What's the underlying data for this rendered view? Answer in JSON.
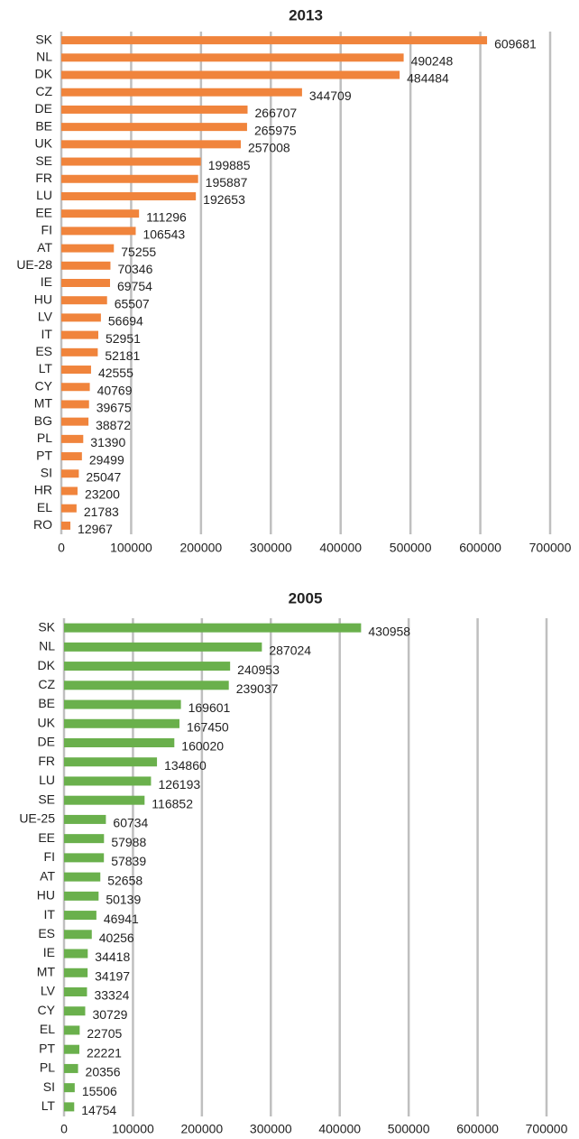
{
  "chart_data": [
    {
      "type": "bar",
      "orientation": "horizontal",
      "title": "2013",
      "color": "#f0843c",
      "grid": true,
      "categories": [
        "SK",
        "NL",
        "DK",
        "CZ",
        "DE",
        "BE",
        "UK",
        "SE",
        "FR",
        "LU",
        "EE",
        "FI",
        "AT",
        "UE-28",
        "IE",
        "HU",
        "LV",
        "IT",
        "ES",
        "LT",
        "CY",
        "MT",
        "BG",
        "PL",
        "PT",
        "SI",
        "HR",
        "EL",
        "RO"
      ],
      "values": [
        609681,
        490248,
        484484,
        344709,
        266707,
        265975,
        257008,
        199885,
        195887,
        192653,
        111296,
        106543,
        75255,
        70346,
        69754,
        65507,
        56694,
        52951,
        52181,
        42555,
        40769,
        39675,
        38872,
        31390,
        29499,
        25047,
        23200,
        21783,
        12967
      ],
      "ylim": [
        0,
        700000
      ],
      "yticks": [
        0,
        100000,
        200000,
        300000,
        400000,
        500000,
        600000,
        700000
      ]
    },
    {
      "type": "bar",
      "orientation": "horizontal",
      "title": "2005",
      "color": "#6ab04c",
      "grid": true,
      "categories": [
        "SK",
        "NL",
        "DK",
        "CZ",
        "BE",
        "UK",
        "DE",
        "FR",
        "LU",
        "SE",
        "UE-25",
        "EE",
        "FI",
        "AT",
        "HU",
        "IT",
        "ES",
        "IE",
        "MT",
        "LV",
        "CY",
        "EL",
        "PT",
        "PL",
        "SI",
        "LT"
      ],
      "values": [
        430958,
        287024,
        240953,
        239037,
        169601,
        167450,
        160020,
        134860,
        126193,
        116852,
        60734,
        57988,
        57839,
        52658,
        50139,
        46941,
        40256,
        34418,
        34197,
        33324,
        30729,
        22705,
        22221,
        20356,
        15506,
        14754
      ],
      "ylim": [
        0,
        700000
      ],
      "yticks": [
        0,
        100000,
        200000,
        300000,
        400000,
        500000,
        600000,
        700000
      ]
    }
  ]
}
